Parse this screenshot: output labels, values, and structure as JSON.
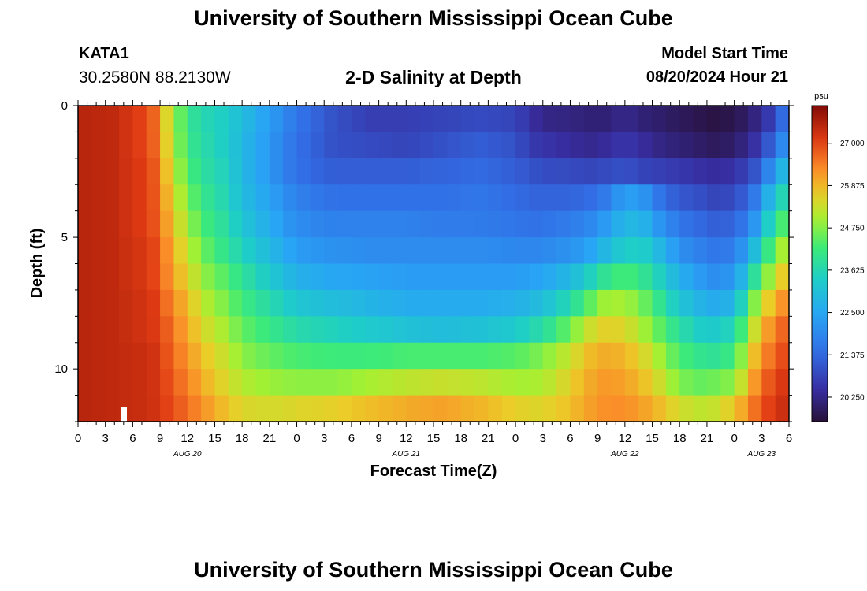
{
  "header": {
    "title": "University of Southern Mississippi Ocean Cube",
    "station_id": "KATA1",
    "coordinates": "30.2580N  88.2130W",
    "model_start_label": "Model Start Time",
    "model_start_value": "08/20/2024 Hour 21"
  },
  "footer": {
    "title": "University of Southern Mississippi Ocean Cube"
  },
  "chart_data": {
    "type": "heatmap",
    "title": "2-D Salinity at Depth",
    "xlabel": "Forecast Time(Z)",
    "ylabel": "Depth (ft)",
    "x_range_hours": [
      0,
      78
    ],
    "y_range_ft": [
      0,
      12
    ],
    "x_ticks": [
      "0",
      "3",
      "6",
      "9",
      "12",
      "15",
      "18",
      "21",
      "0",
      "3",
      "6",
      "9",
      "12",
      "15",
      "18",
      "21",
      "0",
      "3",
      "6",
      "9",
      "12",
      "15",
      "18",
      "21",
      "0",
      "3",
      "6"
    ],
    "y_ticks": [
      {
        "value": 0,
        "label": "0"
      },
      {
        "value": 5,
        "label": "5"
      },
      {
        "value": 10,
        "label": "10"
      }
    ],
    "day_labels": [
      {
        "hour": 12,
        "label": "AUG 20"
      },
      {
        "hour": 36,
        "label": "AUG 21"
      },
      {
        "hour": 60,
        "label": "AUG 22"
      },
      {
        "hour": 75,
        "label": "AUG 23"
      }
    ],
    "colorbar": {
      "unit": "psu",
      "min": 19.6,
      "max": 28.0,
      "ticks": [
        "27.000",
        "25.875",
        "24.750",
        "23.625",
        "22.500",
        "21.375",
        "20.250"
      ],
      "tick_values": [
        27.0,
        25.875,
        24.75,
        23.625,
        22.5,
        21.375,
        20.25
      ]
    },
    "depth_rows_ft": [
      0.5,
      1.5,
      2.5,
      3.5,
      4.5,
      5.5,
      6.5,
      7.5,
      8.5,
      9.5,
      10.5,
      11.5
    ],
    "time_columns_hours": [
      0,
      4,
      8,
      10,
      12,
      14,
      16,
      18,
      21,
      24,
      28,
      32,
      36,
      40,
      44,
      48,
      50,
      52,
      54,
      56,
      58,
      60,
      62,
      64,
      66,
      68,
      70,
      72,
      74,
      76,
      78
    ],
    "salinity_psu": [
      [
        27.5,
        27.4,
        26.9,
        25.3,
        24.0,
        23.6,
        23.4,
        23.0,
        22.3,
        21.6,
        21.0,
        20.7,
        20.7,
        20.8,
        20.9,
        20.8,
        20.4,
        20.2,
        20.2,
        20.1,
        20.1,
        20.3,
        20.1,
        20.0,
        19.9,
        19.8,
        19.7,
        19.8,
        20.1,
        20.7,
        21.8
      ],
      [
        27.5,
        27.4,
        26.9,
        25.4,
        24.1,
        23.7,
        23.4,
        22.9,
        22.2,
        21.5,
        21.0,
        20.9,
        20.8,
        21.0,
        21.2,
        21.0,
        20.6,
        20.5,
        20.4,
        20.3,
        20.4,
        20.6,
        20.4,
        20.2,
        20.1,
        20.0,
        19.9,
        20.0,
        20.4,
        21.2,
        22.4
      ],
      [
        27.5,
        27.4,
        27.0,
        25.6,
        24.3,
        23.8,
        23.5,
        22.9,
        22.2,
        21.5,
        21.2,
        21.2,
        21.2,
        21.3,
        21.4,
        21.2,
        21.0,
        20.9,
        20.9,
        20.8,
        20.9,
        21.0,
        20.8,
        20.7,
        20.6,
        20.5,
        20.4,
        20.5,
        20.9,
        22.0,
        23.3
      ],
      [
        27.5,
        27.4,
        27.0,
        25.8,
        24.6,
        24.0,
        23.6,
        23.0,
        22.4,
        21.8,
        21.5,
        21.5,
        21.5,
        21.5,
        21.6,
        21.4,
        21.3,
        21.3,
        21.3,
        21.4,
        21.7,
        22.4,
        22.2,
        21.5,
        21.1,
        21.0,
        20.8,
        20.9,
        21.5,
        22.9,
        24.0
      ],
      [
        27.5,
        27.4,
        27.0,
        26.0,
        24.9,
        24.2,
        23.8,
        23.2,
        22.6,
        22.0,
        21.8,
        21.8,
        21.8,
        21.7,
        21.7,
        21.6,
        21.5,
        21.6,
        21.7,
        21.9,
        22.3,
        22.9,
        22.8,
        22.1,
        21.6,
        21.4,
        21.2,
        21.3,
        22.0,
        23.6,
        24.7
      ],
      [
        27.5,
        27.4,
        27.1,
        26.2,
        25.2,
        24.5,
        24.0,
        23.5,
        22.9,
        22.3,
        22.1,
        22.0,
        22.0,
        22.0,
        22.0,
        21.9,
        21.9,
        22.0,
        22.1,
        22.4,
        22.9,
        23.4,
        23.4,
        22.8,
        22.1,
        21.8,
        21.6,
        21.7,
        22.8,
        24.3,
        25.4
      ],
      [
        27.5,
        27.4,
        27.1,
        26.3,
        25.5,
        24.8,
        24.4,
        23.9,
        23.3,
        22.7,
        22.5,
        22.4,
        22.3,
        22.3,
        22.3,
        22.3,
        22.4,
        22.6,
        22.9,
        23.4,
        24.0,
        24.3,
        24.0,
        23.4,
        22.7,
        22.3,
        22.0,
        22.2,
        23.7,
        25.0,
        26.0
      ],
      [
        27.5,
        27.4,
        27.2,
        26.5,
        25.8,
        25.1,
        24.7,
        24.2,
        23.7,
        23.2,
        23.0,
        22.8,
        22.6,
        22.6,
        22.6,
        22.7,
        22.9,
        23.2,
        23.7,
        24.4,
        25.0,
        25.0,
        24.6,
        23.9,
        23.2,
        22.8,
        22.6,
        22.8,
        24.6,
        25.8,
        26.5
      ],
      [
        27.5,
        27.4,
        27.2,
        26.7,
        26.0,
        25.4,
        25.0,
        24.5,
        24.1,
        23.7,
        23.5,
        23.3,
        23.1,
        23.0,
        23.1,
        23.3,
        23.6,
        24.0,
        24.6,
        25.3,
        25.6,
        25.5,
        25.0,
        24.4,
        23.8,
        23.4,
        23.3,
        23.6,
        25.2,
        26.3,
        26.9
      ],
      [
        27.5,
        27.4,
        27.3,
        26.8,
        26.2,
        25.7,
        25.3,
        24.8,
        24.5,
        24.3,
        24.2,
        24.2,
        24.3,
        24.3,
        24.3,
        24.4,
        24.6,
        24.9,
        25.3,
        25.8,
        26.0,
        25.9,
        25.5,
        24.9,
        24.3,
        24.0,
        23.9,
        24.2,
        25.7,
        26.6,
        27.1
      ],
      [
        27.5,
        27.4,
        27.3,
        26.9,
        26.4,
        25.9,
        25.5,
        25.1,
        24.9,
        24.8,
        24.8,
        25.0,
        25.2,
        25.3,
        25.2,
        25.0,
        25.0,
        25.2,
        25.6,
        26.0,
        26.2,
        26.1,
        25.8,
        25.3,
        24.7,
        24.5,
        24.6,
        24.8,
        26.1,
        26.9,
        27.3
      ],
      [
        27.5,
        27.4,
        27.3,
        27.0,
        26.6,
        26.2,
        25.8,
        25.5,
        25.4,
        25.5,
        25.6,
        25.8,
        26.0,
        26.1,
        25.9,
        25.6,
        25.5,
        25.6,
        25.8,
        26.1,
        26.3,
        26.3,
        26.1,
        25.8,
        25.4,
        25.2,
        25.3,
        25.7,
        26.5,
        27.1,
        27.4
      ]
    ]
  }
}
